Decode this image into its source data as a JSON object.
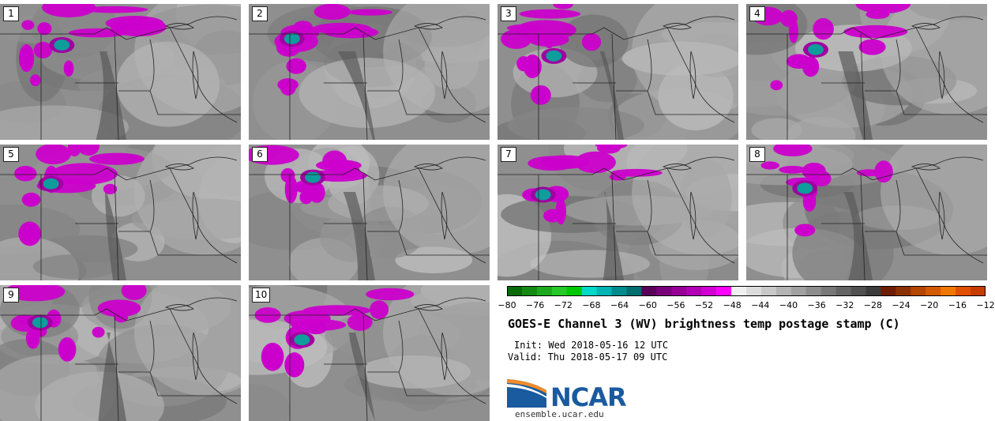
{
  "panels": [
    {
      "label": "1"
    },
    {
      "label": "2"
    },
    {
      "label": "3"
    },
    {
      "label": "4"
    },
    {
      "label": "5"
    },
    {
      "label": "6"
    },
    {
      "label": "7"
    },
    {
      "label": "8"
    },
    {
      "label": "9"
    },
    {
      "label": "10"
    }
  ],
  "colorbar": {
    "ticks": [
      "−80",
      "−76",
      "−72",
      "−68",
      "−64",
      "−60",
      "−56",
      "−52",
      "−48",
      "−44",
      "−40",
      "−36",
      "−32",
      "−28",
      "−24",
      "−20",
      "−16",
      "−12"
    ],
    "colors": [
      "#0a6a0a",
      "#148a14",
      "#1ea81e",
      "#28c828",
      "#00c800",
      "#00d8c8",
      "#00b4b4",
      "#008c8c",
      "#006e6e",
      "#5a005a",
      "#780078",
      "#960096",
      "#b400b4",
      "#d200d2",
      "#ff00ff",
      "#f0f0f0",
      "#dcdcdc",
      "#c8c8c8",
      "#b4b4b4",
      "#a0a0a0",
      "#8c8c8c",
      "#787878",
      "#646464",
      "#505050",
      "#3c3c3c",
      "#6e1e00",
      "#8c3200",
      "#b44600",
      "#d25a00",
      "#f07800",
      "#e05000",
      "#c83c00"
    ]
  },
  "title": "GOES-E Channel 3 (WV) brightness temp postage stamp (C)",
  "init": "Init: Wed 2018-05-16 12 UTC",
  "valid": "Valid: Thu 2018-05-17 09 UTC",
  "logo": {
    "text": "NCAR",
    "site": "ensemble.ucar.edu"
  }
}
